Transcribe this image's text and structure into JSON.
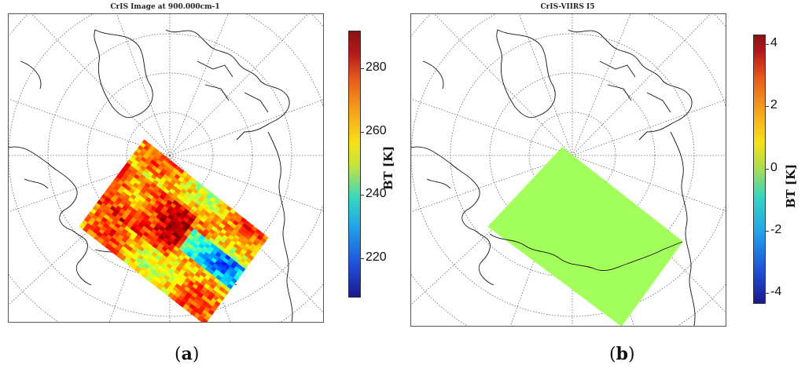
{
  "panels": [
    {
      "id": "a",
      "title": "CrIS Image at 900.000cm-1",
      "caption_letter": "a",
      "colorbar": {
        "label": "BT [K]",
        "ticks": [
          "280",
          "260",
          "240",
          "220"
        ],
        "tick_values": [
          280,
          260,
          240,
          220
        ],
        "range": [
          208,
          292
        ],
        "colormap": "jet"
      }
    },
    {
      "id": "b",
      "title": "CrIS-VIIRS I5",
      "caption_letter": "b",
      "colorbar": {
        "label": "BT [K]",
        "ticks": [
          "4",
          "2",
          "0",
          "-2",
          "-4"
        ],
        "tick_values": [
          4,
          2,
          0,
          -2,
          -4
        ],
        "range": [
          -4.3,
          4.3
        ],
        "colormap": "jet"
      },
      "swath_uniform_value": 0.3
    }
  ]
}
